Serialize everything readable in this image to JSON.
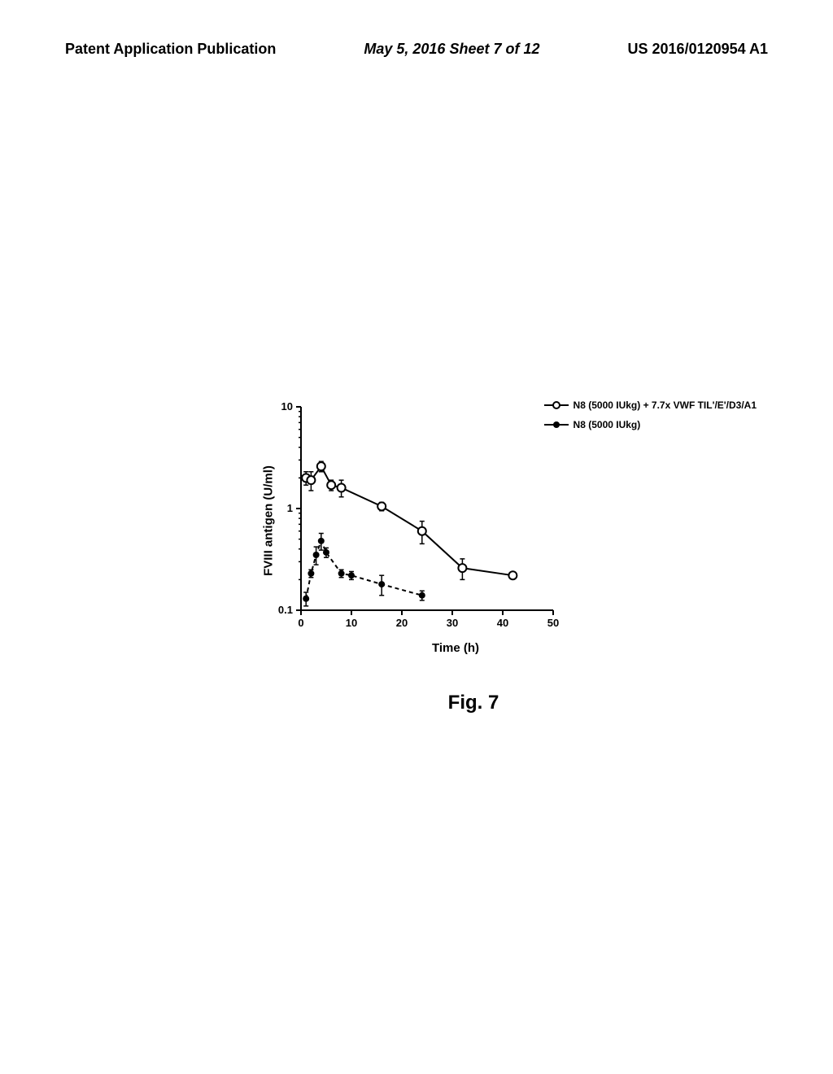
{
  "header": {
    "left": "Patent Application Publication",
    "center": "May 5, 2016  Sheet 7 of 12",
    "right": "US 2016/0120954 A1"
  },
  "figure": {
    "caption": "Fig. 7"
  },
  "chart": {
    "type": "line",
    "xlabel": "Time (h)",
    "ylabel": "FVIII antigen (U/ml)",
    "xlim": [
      0,
      50
    ],
    "ylim_log": [
      0.1,
      10
    ],
    "xticks": [
      0,
      10,
      20,
      30,
      40,
      50
    ],
    "yticks": [
      0.1,
      1,
      10
    ],
    "ytick_labels": [
      "0.1",
      "1",
      "10"
    ],
    "axis_color": "#000000",
    "background_color": "#ffffff",
    "line_width": 2,
    "marker_size": 5,
    "series": [
      {
        "name": "N8 (5000 IUkg) + 7.7x VWF TIL'/E'/D3/A1",
        "marker": "open-circle",
        "line_style": "solid",
        "color": "#000000",
        "points": [
          {
            "x": 1,
            "y": 2.0,
            "err": 0.3
          },
          {
            "x": 2,
            "y": 1.9,
            "err": 0.4
          },
          {
            "x": 4,
            "y": 2.6,
            "err": 0.3
          },
          {
            "x": 6,
            "y": 1.7,
            "err": 0.2
          },
          {
            "x": 8,
            "y": 1.6,
            "err": 0.3
          },
          {
            "x": 16,
            "y": 1.05,
            "err": 0.1
          },
          {
            "x": 24,
            "y": 0.6,
            "err": 0.15
          },
          {
            "x": 32,
            "y": 0.26,
            "err": 0.06
          },
          {
            "x": 42,
            "y": 0.22,
            "err": 0.01
          }
        ]
      },
      {
        "name": "N8 (5000 IUkg)",
        "marker": "filled-circle",
        "line_style": "dashed",
        "color": "#000000",
        "points": [
          {
            "x": 1,
            "y": 0.13,
            "err": 0.02
          },
          {
            "x": 2,
            "y": 0.23,
            "err": 0.02
          },
          {
            "x": 3,
            "y": 0.35,
            "err": 0.07
          },
          {
            "x": 4,
            "y": 0.48,
            "err": 0.09
          },
          {
            "x": 5,
            "y": 0.37,
            "err": 0.04
          },
          {
            "x": 8,
            "y": 0.23,
            "err": 0.02
          },
          {
            "x": 10,
            "y": 0.22,
            "err": 0.02
          },
          {
            "x": 16,
            "y": 0.18,
            "err": 0.04
          },
          {
            "x": 24,
            "y": 0.14,
            "err": 0.015
          }
        ]
      }
    ]
  }
}
